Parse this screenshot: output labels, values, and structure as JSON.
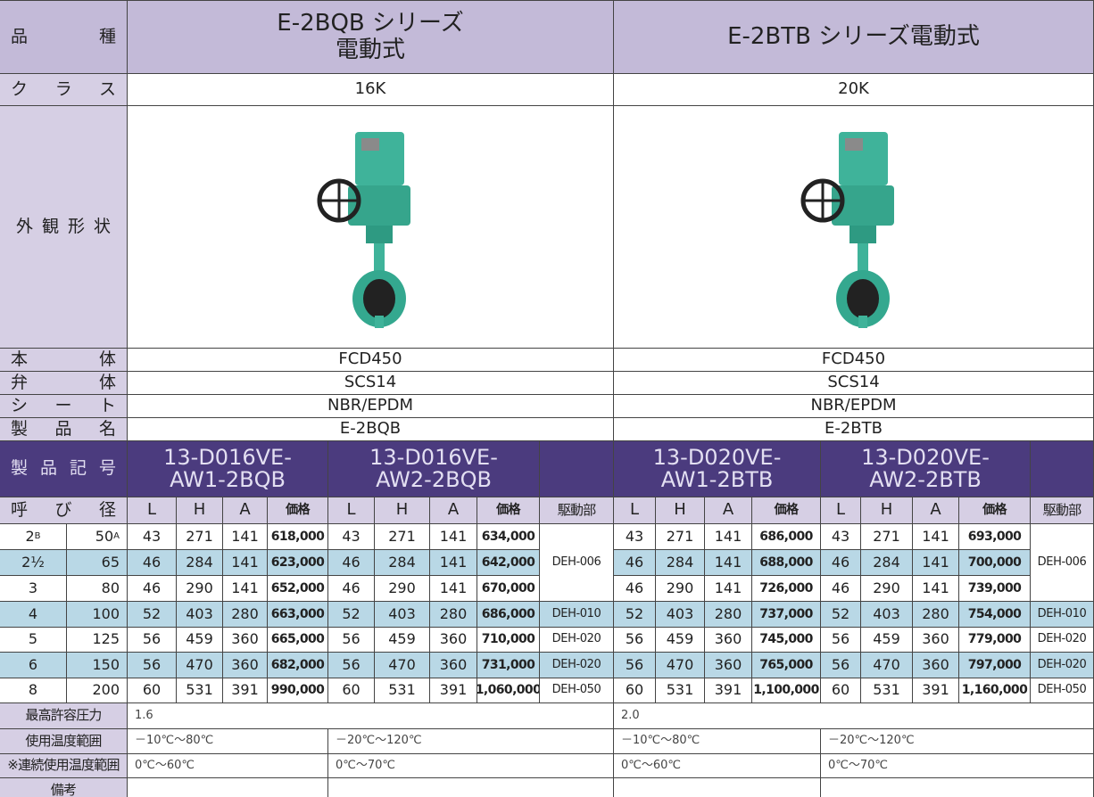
{
  "labels": {
    "kind": "品種",
    "class": "クラス",
    "appearance": "外観形状",
    "body": "本体",
    "disc": "弁体",
    "seat": "シート",
    "product_name": "製品名",
    "product_code": "製品記号",
    "nominal_size": "呼び径",
    "max_pressure": "最高許容圧力",
    "temp_range": "使用温度範囲",
    "cont_temp_range": "連続使用温度範囲",
    "note_mark": "※",
    "remarks": "備考"
  },
  "columns": [
    "L",
    "H",
    "A",
    "価格",
    "駆動部"
  ],
  "sizes": [
    {
      "inch": "2",
      "inch_mark": "B",
      "mm": "50",
      "mm_mark": "A"
    },
    {
      "inch": "2½",
      "mm": "65"
    },
    {
      "inch": "3",
      "mm": "80"
    },
    {
      "inch": "4",
      "mm": "100"
    },
    {
      "inch": "5",
      "mm": "125"
    },
    {
      "inch": "6",
      "mm": "150"
    },
    {
      "inch": "8",
      "mm": "200"
    }
  ],
  "series": [
    {
      "title_lines": [
        "E-2BQB シリーズ",
        "電動式"
      ],
      "class": "16K",
      "body": "FCD450",
      "disc": "SCS14",
      "seat": "NBR/EPDM",
      "product_name": "E-2BQB",
      "codes": [
        [
          "13-D016VE-",
          "AW1-2BQB"
        ],
        [
          "13-D016VE-",
          "AW2-2BQB"
        ]
      ],
      "max_pressure": "1.6",
      "temp_ranges": [
        "－10℃～80℃",
        "－20℃～120℃"
      ],
      "cont_temp_ranges": [
        "0℃～60℃",
        "0℃～70℃"
      ],
      "rows": [
        {
          "models": [
            [
              "43",
              "271",
              "141",
              "618,000"
            ],
            [
              "43",
              "271",
              "141",
              "634,000"
            ]
          ]
        },
        {
          "models": [
            [
              "46",
              "284",
              "141",
              "623,000"
            ],
            [
              "46",
              "284",
              "141",
              "642,000"
            ]
          ],
          "actuator": "DEH-006"
        },
        {
          "models": [
            [
              "46",
              "290",
              "141",
              "652,000"
            ],
            [
              "46",
              "290",
              "141",
              "670,000"
            ]
          ]
        },
        {
          "models": [
            [
              "52",
              "403",
              "280",
              "663,000"
            ],
            [
              "52",
              "403",
              "280",
              "686,000"
            ]
          ],
          "actuator": "DEH-010"
        },
        {
          "models": [
            [
              "56",
              "459",
              "360",
              "665,000"
            ],
            [
              "56",
              "459",
              "360",
              "710,000"
            ]
          ],
          "actuator": "DEH-020"
        },
        {
          "models": [
            [
              "56",
              "470",
              "360",
              "682,000"
            ],
            [
              "56",
              "470",
              "360",
              "731,000"
            ]
          ],
          "actuator": "DEH-020"
        },
        {
          "models": [
            [
              "60",
              "531",
              "391",
              "990,000"
            ],
            [
              "60",
              "531",
              "391",
              "1,060,000"
            ]
          ],
          "actuator": "DEH-050"
        }
      ]
    },
    {
      "title_lines": [
        "E-2BTB シリーズ電動式"
      ],
      "class": "20K",
      "body": "FCD450",
      "disc": "SCS14",
      "seat": "NBR/EPDM",
      "product_name": "E-2BTB",
      "codes": [
        [
          "13-D020VE-",
          "AW1-2BTB"
        ],
        [
          "13-D020VE-",
          "AW2-2BTB"
        ]
      ],
      "max_pressure": "2.0",
      "temp_ranges": [
        "－10℃～80℃",
        "－20℃～120℃"
      ],
      "cont_temp_ranges": [
        "0℃～60℃",
        "0℃～70℃"
      ],
      "rows": [
        {
          "models": [
            [
              "43",
              "271",
              "141",
              "686,000"
            ],
            [
              "43",
              "271",
              "141",
              "693,000"
            ]
          ]
        },
        {
          "models": [
            [
              "46",
              "284",
              "141",
              "688,000"
            ],
            [
              "46",
              "284",
              "141",
              "700,000"
            ]
          ],
          "actuator": "DEH-006"
        },
        {
          "models": [
            [
              "46",
              "290",
              "141",
              "726,000"
            ],
            [
              "46",
              "290",
              "141",
              "739,000"
            ]
          ]
        },
        {
          "models": [
            [
              "52",
              "403",
              "280",
              "737,000"
            ],
            [
              "52",
              "403",
              "280",
              "754,000"
            ]
          ],
          "actuator": "DEH-010"
        },
        {
          "models": [
            [
              "56",
              "459",
              "360",
              "745,000"
            ],
            [
              "56",
              "459",
              "360",
              "779,000"
            ]
          ],
          "actuator": "DEH-020"
        },
        {
          "models": [
            [
              "56",
              "470",
              "360",
              "765,000"
            ],
            [
              "56",
              "470",
              "360",
              "797,000"
            ]
          ],
          "actuator": "DEH-020"
        },
        {
          "models": [
            [
              "60",
              "531",
              "391",
              "1,100,000"
            ],
            [
              "60",
              "531",
              "391",
              "1,160,000"
            ]
          ],
          "actuator": "DEH-050"
        }
      ]
    }
  ]
}
